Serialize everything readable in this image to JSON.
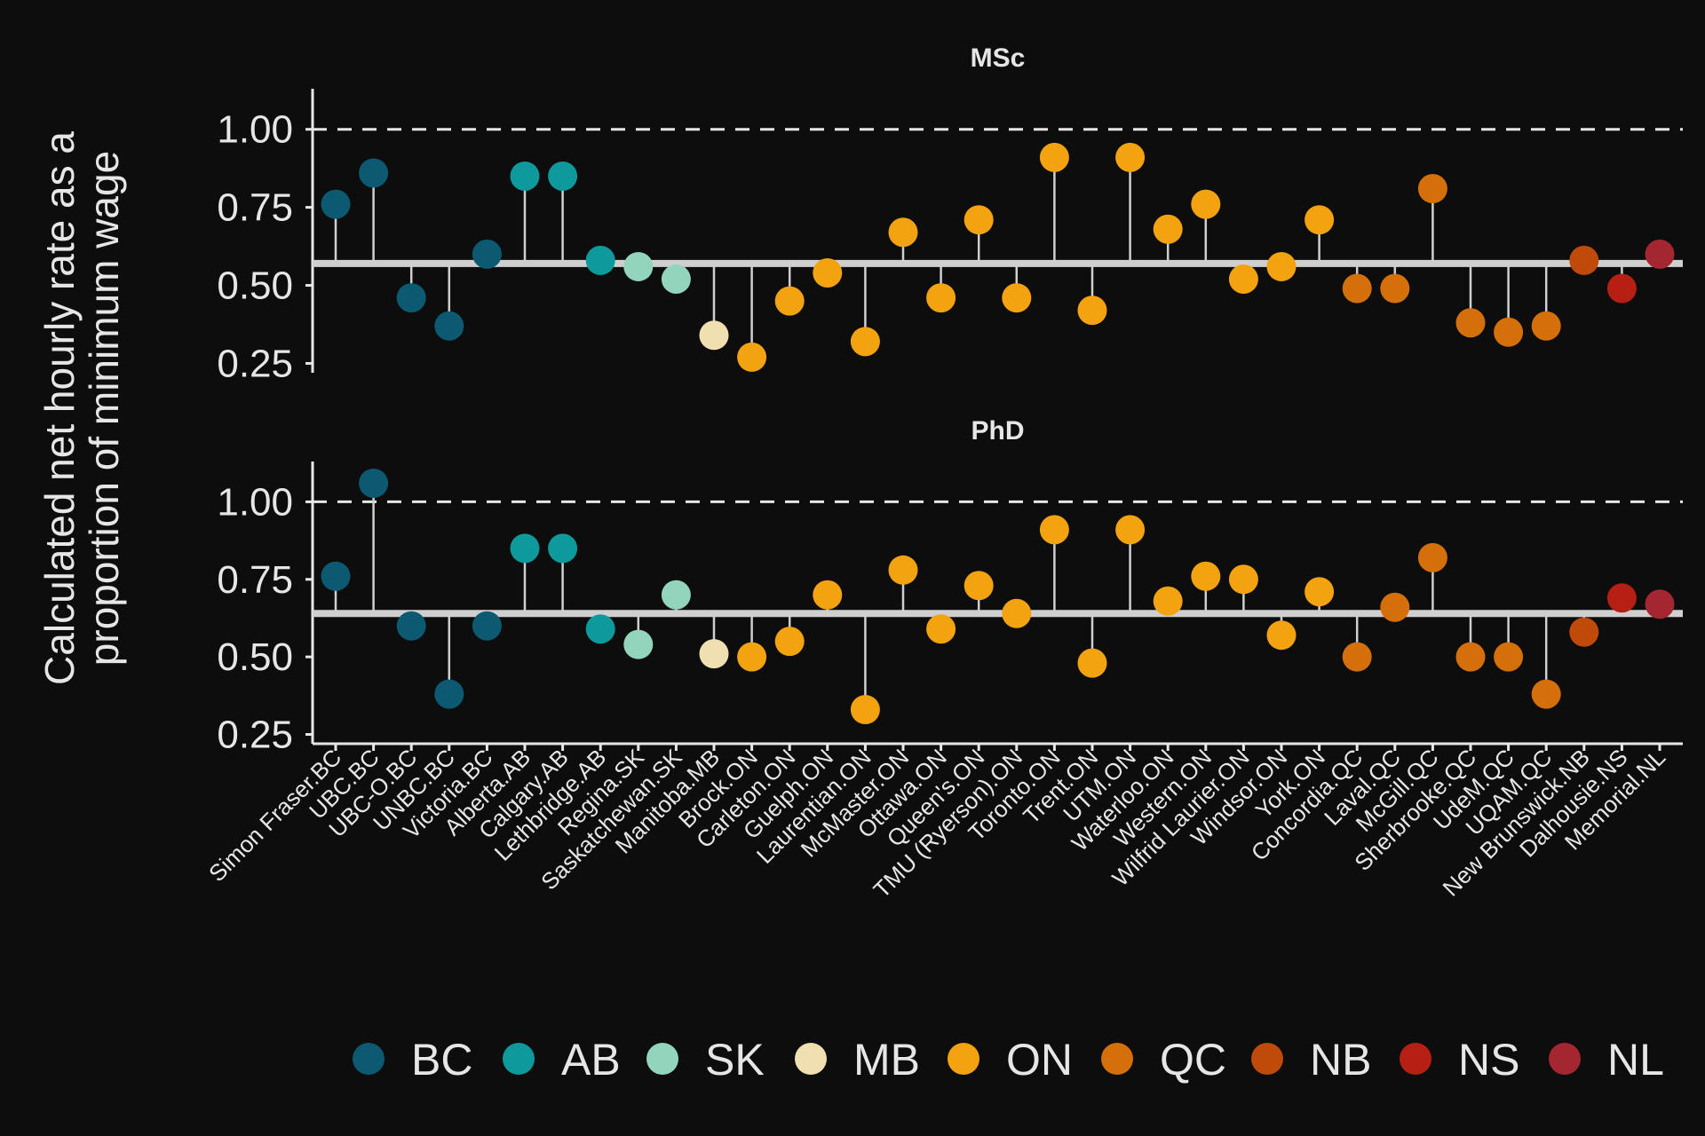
{
  "chart_data": {
    "type": "scatter",
    "subtype": "lollipop",
    "ylabel_lines": [
      "Calculated net hourly rate as a",
      "proportion of minimum wage"
    ],
    "reference_line": 1.0,
    "y_ticks": [
      0.25,
      0.5,
      0.75,
      1.0
    ],
    "y_tick_labels": [
      "0.25",
      "0.50",
      "0.75",
      "1.00"
    ],
    "ylim": [
      0.22,
      1.13
    ],
    "grid": false,
    "legend_position": "bottom",
    "categories": [
      "Simon Fraser.BC",
      "UBC.BC",
      "UBC-O.BC",
      "UNBC.BC",
      "Victoria.BC",
      "Alberta.AB",
      "Calgary.AB",
      "Lethbridge.AB",
      "Regina.SK",
      "Saskatchewan.SK",
      "Manitoba.MB",
      "Brock.ON",
      "Carleton.ON",
      "Guelph.ON",
      "Laurentian.ON",
      "McMaster.ON",
      "Ottawa.ON",
      "Queen's.ON",
      "TMU (Ryerson).ON",
      "Toronto.ON",
      "Trent.ON",
      "UTM.ON",
      "Waterloo.ON",
      "Western.ON",
      "Wilfrid Laurier.ON",
      "Windsor.ON",
      "York.ON",
      "Concordia.QC",
      "Laval.QC",
      "McGill.QC",
      "Sherbrooke.QC",
      "UdeM.QC",
      "UQAM.QC",
      "New Brunswick.NB",
      "Dalhousie.NS",
      "Memorial.NL"
    ],
    "province_of_category": [
      "BC",
      "BC",
      "BC",
      "BC",
      "BC",
      "AB",
      "AB",
      "AB",
      "SK",
      "SK",
      "MB",
      "ON",
      "ON",
      "ON",
      "ON",
      "ON",
      "ON",
      "ON",
      "ON",
      "ON",
      "ON",
      "ON",
      "ON",
      "ON",
      "ON",
      "ON",
      "ON",
      "QC",
      "QC",
      "QC",
      "QC",
      "QC",
      "QC",
      "NB",
      "NS",
      "NL"
    ],
    "legend": [
      {
        "label": "BC",
        "color": "#0b5a72"
      },
      {
        "label": "AB",
        "color": "#0e9a9c"
      },
      {
        "label": "SK",
        "color": "#93d4bd"
      },
      {
        "label": "MB",
        "color": "#f0dfb0"
      },
      {
        "label": "ON",
        "color": "#f2a30f"
      },
      {
        "label": "QC",
        "color": "#d46f09"
      },
      {
        "label": "NB",
        "color": "#c04a0a"
      },
      {
        "label": "NS",
        "color": "#b61f13"
      },
      {
        "label": "NL",
        "color": "#a42630"
      }
    ],
    "panels": [
      {
        "title": "MSc",
        "baseline": 0.57,
        "values": [
          0.76,
          0.86,
          0.46,
          0.37,
          0.6,
          0.85,
          0.85,
          0.58,
          0.56,
          0.52,
          0.34,
          0.27,
          0.45,
          0.54,
          0.32,
          0.67,
          0.46,
          0.71,
          0.46,
          0.91,
          0.42,
          0.91,
          0.68,
          0.76,
          0.52,
          0.56,
          0.71,
          0.49,
          0.49,
          0.81,
          0.38,
          0.35,
          0.37,
          0.58,
          0.49,
          0.6
        ]
      },
      {
        "title": "PhD",
        "baseline": 0.64,
        "values": [
          0.76,
          1.06,
          0.6,
          0.38,
          0.6,
          0.85,
          0.85,
          0.59,
          0.54,
          0.7,
          0.51,
          0.5,
          0.55,
          0.7,
          0.33,
          0.78,
          0.59,
          0.73,
          0.64,
          0.91,
          0.48,
          0.91,
          0.68,
          0.76,
          0.75,
          0.57,
          0.71,
          0.5,
          0.66,
          0.82,
          0.5,
          0.5,
          0.38,
          0.58,
          0.69,
          0.67
        ]
      }
    ]
  }
}
